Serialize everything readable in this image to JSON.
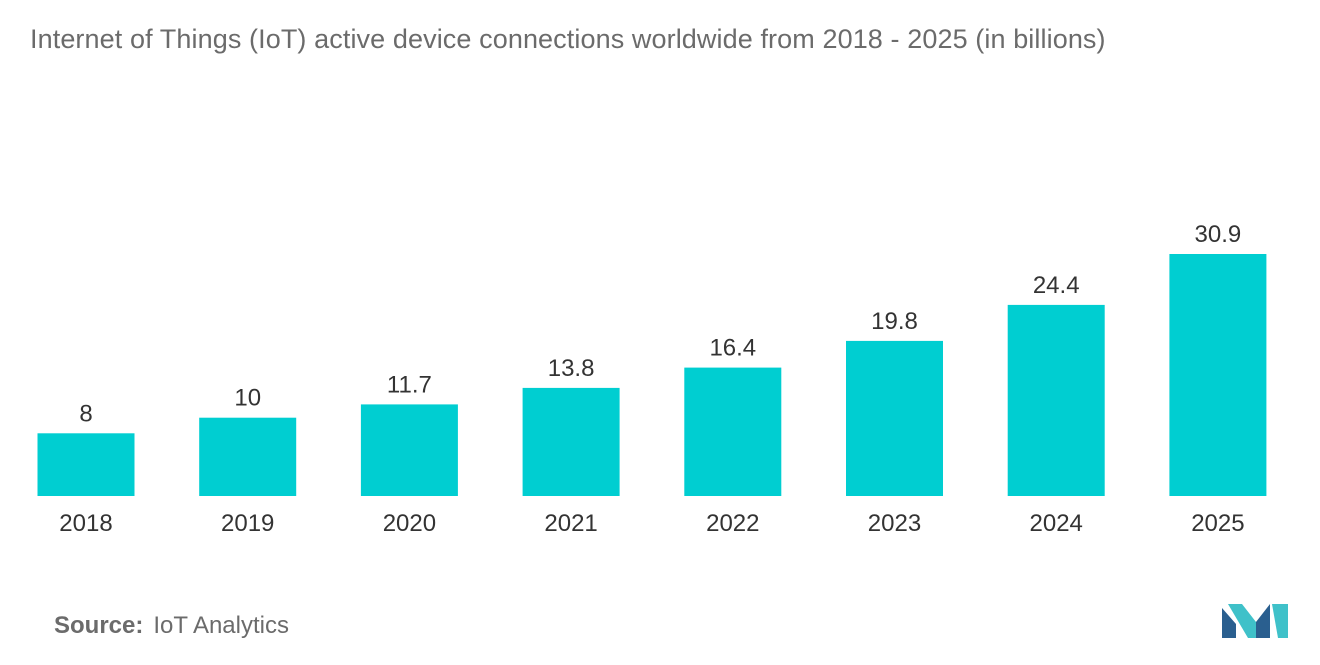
{
  "title": "Internet of Things (IoT) active device connections worldwide from 2018 - 2025 (in billions)",
  "source": {
    "label": "Source:",
    "value": "IoT Analytics"
  },
  "colors": {
    "bar": "#00ced1",
    "title": "#6b6b6b",
    "text": "#333333",
    "logo_dark": "#2a5f8f",
    "logo_light": "#3fc1c9"
  },
  "logo_icon": "mordor-intelligence-logo",
  "chart_data": {
    "type": "bar",
    "categories": [
      "2018",
      "2019",
      "2020",
      "2021",
      "2022",
      "2023",
      "2024",
      "2025"
    ],
    "values": [
      8,
      10,
      11.7,
      13.8,
      16.4,
      19.8,
      24.4,
      30.9
    ],
    "value_labels": [
      "8",
      "10",
      "11.7",
      "13.8",
      "16.4",
      "19.8",
      "24.4",
      "30.9"
    ],
    "title": "Internet of Things (IoT) active device connections worldwide from 2018 - 2025 (in billions)",
    "xlabel": "",
    "ylabel": "",
    "ylim": [
      0,
      30.9
    ],
    "grid": false,
    "legend": "none"
  }
}
